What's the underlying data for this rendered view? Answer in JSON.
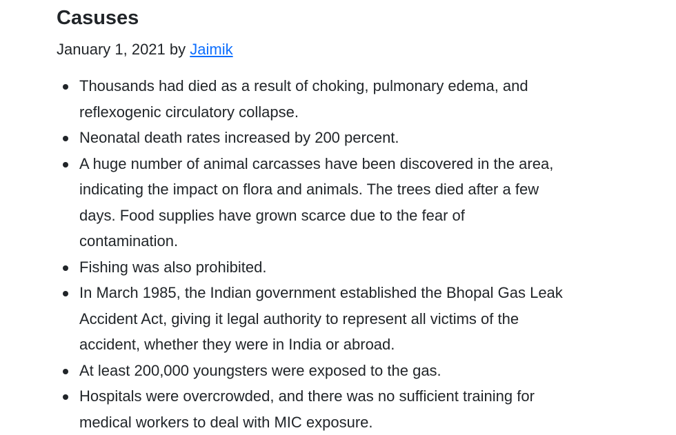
{
  "article": {
    "title": "Casuses",
    "date": "January 1, 2021",
    "by_label": "by",
    "author": "Jaimik",
    "items": [
      "Thousands had died as a result of choking, pulmonary edema, and reflexogenic circulatory collapse.",
      "Neonatal death rates increased by 200 percent.",
      "A huge number of animal carcasses have been discovered in the area, indicating the impact on flora and animals. The trees died after a few days. Food supplies have grown scarce due to the fear of contamination.",
      "Fishing was also prohibited.",
      "In March 1985, the Indian government established the Bhopal Gas Leak Accident Act, giving it legal authority to represent all victims of the accident, whether they were in India or abroad.",
      "At least 200,000 youngsters were exposed to the gas.",
      "Hospitals were overcrowded, and there was no sufficient training for medical workers to deal with MIC exposure."
    ]
  },
  "colors": {
    "text": "#212529",
    "link": "#0d6efd",
    "background": "#ffffff"
  }
}
